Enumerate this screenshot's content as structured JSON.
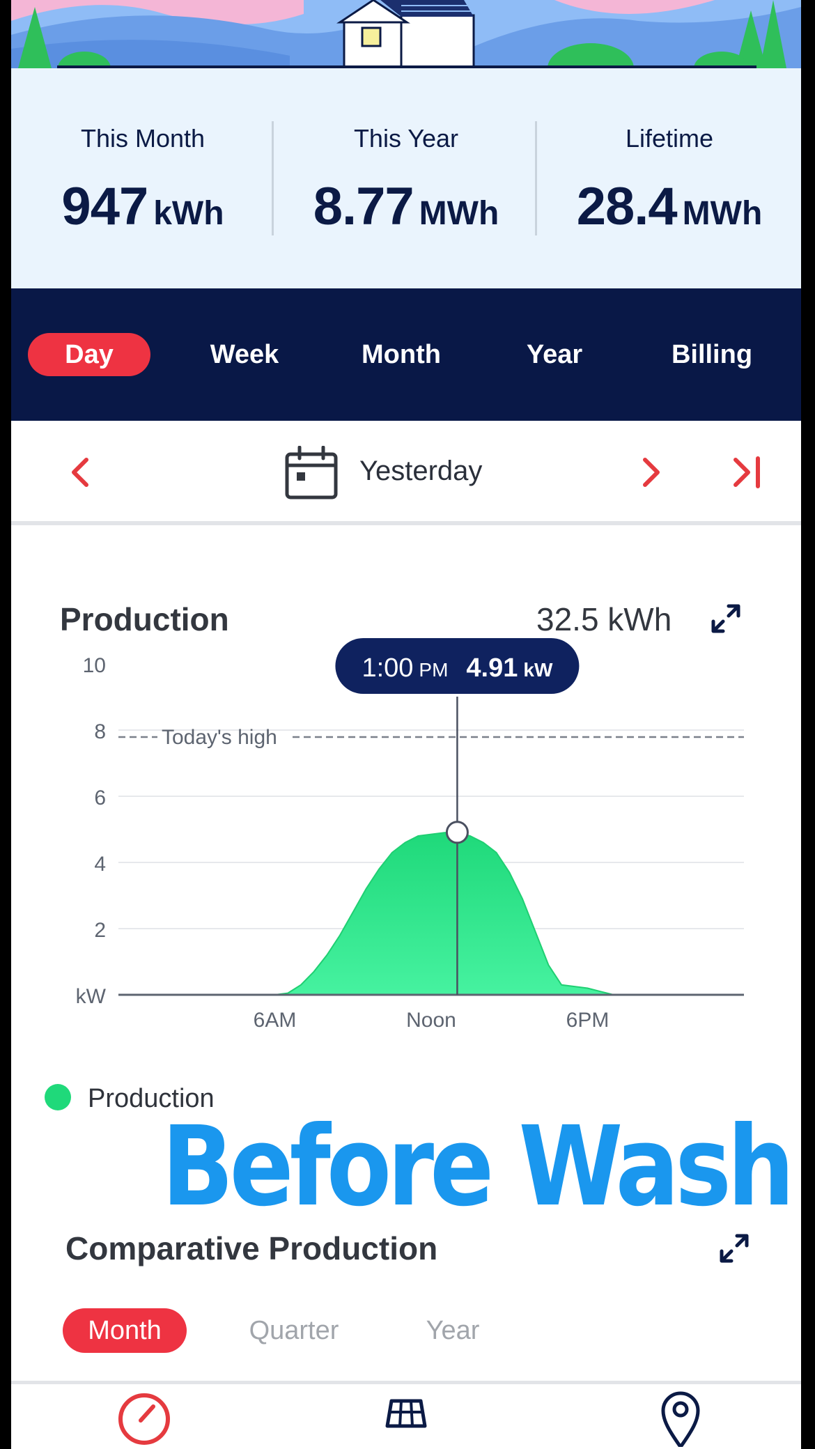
{
  "stats": [
    {
      "label": "This Month",
      "value": "947",
      "unit": "kWh"
    },
    {
      "label": "This Year",
      "value": "8.77",
      "unit": "MWh"
    },
    {
      "label": "Lifetime",
      "value": "28.4",
      "unit": "MWh"
    }
  ],
  "tabs": [
    {
      "label": "Day",
      "active": true
    },
    {
      "label": "Week",
      "active": false
    },
    {
      "label": "Month",
      "active": false
    },
    {
      "label": "Year",
      "active": false
    },
    {
      "label": "Billing",
      "active": false
    }
  ],
  "date_nav": {
    "label": "Yesterday"
  },
  "production": {
    "title": "Production",
    "total": "32.5 kWh",
    "tooltip_time": "1:00",
    "tooltip_ampm": "PM",
    "tooltip_value": "4.91",
    "tooltip_unit": "kW",
    "high_label": "Today's high",
    "legend_label": "Production"
  },
  "chart_data": {
    "type": "area",
    "title": "Production",
    "xlabel": "",
    "ylabel": "kW",
    "y_ticks": [
      "kW",
      "2",
      "4",
      "6",
      "8",
      "10"
    ],
    "ylim": [
      0,
      10
    ],
    "x_ticks": [
      {
        "hour": 6,
        "label": "6AM"
      },
      {
        "hour": 12,
        "label": "Noon"
      },
      {
        "hour": 18,
        "label": "6PM"
      }
    ],
    "xlim": [
      0,
      24
    ],
    "grid": true,
    "todays_high": 8,
    "selected": {
      "hour": 13,
      "value": 4.91
    },
    "series": [
      {
        "name": "Production",
        "color": "#2ee888",
        "x": [
          0,
          6,
          6.5,
          7,
          7.5,
          8,
          8.5,
          9,
          9.5,
          10,
          10.5,
          11,
          11.5,
          12,
          12.5,
          13,
          13.5,
          14,
          14.5,
          15,
          15.5,
          16,
          16.5,
          17,
          17.5,
          18,
          18.5,
          19,
          24
        ],
        "values": [
          0,
          0,
          0.05,
          0.3,
          0.7,
          1.2,
          1.8,
          2.5,
          3.2,
          3.8,
          4.3,
          4.6,
          4.8,
          4.85,
          4.9,
          4.91,
          4.8,
          4.6,
          4.3,
          3.7,
          2.9,
          1.9,
          0.9,
          0.3,
          0.25,
          0.2,
          0.1,
          0,
          0
        ]
      }
    ]
  },
  "overlay_caption": "Before Wash",
  "comparative": {
    "title": "Comparative Production",
    "tabs": [
      {
        "label": "Month",
        "active": true
      },
      {
        "label": "Quarter",
        "active": false
      },
      {
        "label": "Year",
        "active": false
      }
    ]
  },
  "icons": {
    "prev": "chevron-left-icon",
    "next": "chevron-right-icon",
    "last": "skip-to-end-icon",
    "calendar": "calendar-icon",
    "expand": "expand-icon"
  },
  "colors": {
    "navy": "#091847",
    "accent_red": "#ee3342",
    "production_green": "#2ee888",
    "caption_blue": "#1a97ee",
    "stats_bg": "#eaf4fd"
  }
}
